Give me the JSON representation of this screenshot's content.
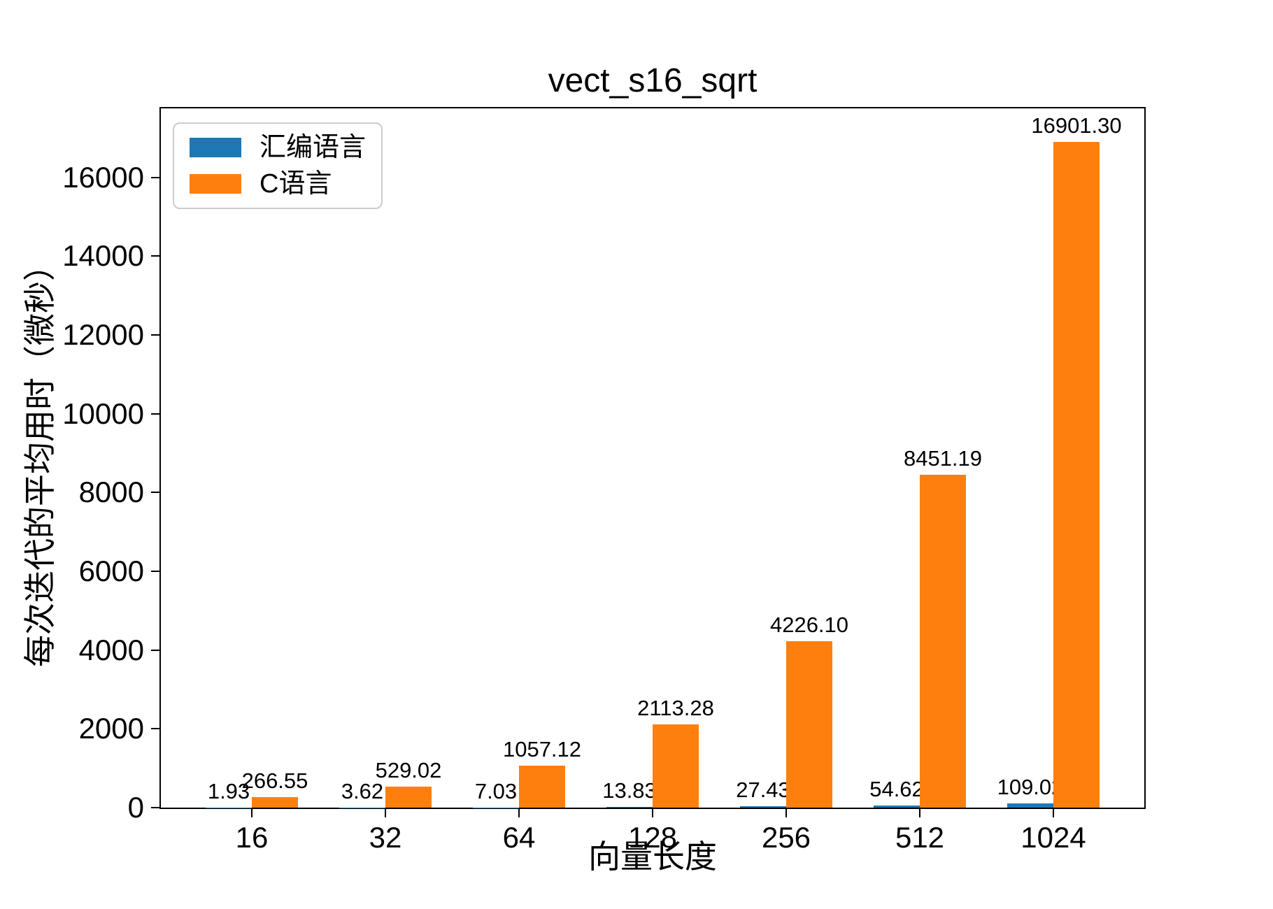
{
  "title": "vect_s16_sqrt",
  "axis": {
    "xlabel": "向量长度",
    "ylabel": "每次迭代的平均用时（微秒）"
  },
  "legend": {
    "position": "upper left",
    "items": [
      {
        "label": "汇编语言",
        "color": "#1f77b4"
      },
      {
        "label": "C语言",
        "color": "#ff7f0e"
      }
    ]
  },
  "chart_data": {
    "type": "bar",
    "title": "vect_s16_sqrt",
    "xlabel": "向量长度",
    "ylabel": "每次迭代的平均用时（微秒）",
    "categories": [
      "16",
      "32",
      "64",
      "128",
      "256",
      "512",
      "1024"
    ],
    "series": [
      {
        "name": "汇编语言",
        "color": "#1f77b4",
        "values": [
          1.93,
          3.62,
          7.03,
          13.83,
          27.43,
          54.62,
          109.02
        ],
        "value_labels": [
          "1.93",
          "3.62",
          "7.03",
          "13.83",
          "27.43",
          "54.62",
          "109.02"
        ]
      },
      {
        "name": "C语言",
        "color": "#ff7f0e",
        "values": [
          266.55,
          529.02,
          1057.12,
          2113.28,
          4226.1,
          8451.19,
          16901.3
        ],
        "value_labels": [
          "266.55",
          "529.02",
          "1057.12",
          "2113.28",
          "4226.10",
          "8451.19",
          "16901.30"
        ]
      }
    ],
    "yticks": [
      0,
      2000,
      4000,
      6000,
      8000,
      10000,
      12000,
      14000,
      16000
    ],
    "ytick_labels": [
      "0",
      "2000",
      "4000",
      "6000",
      "8000",
      "10000",
      "12000",
      "14000",
      "16000"
    ],
    "ylim": [
      0,
      17750
    ],
    "grid": false,
    "legend_position": "upper left",
    "bar_value_labels": true
  }
}
